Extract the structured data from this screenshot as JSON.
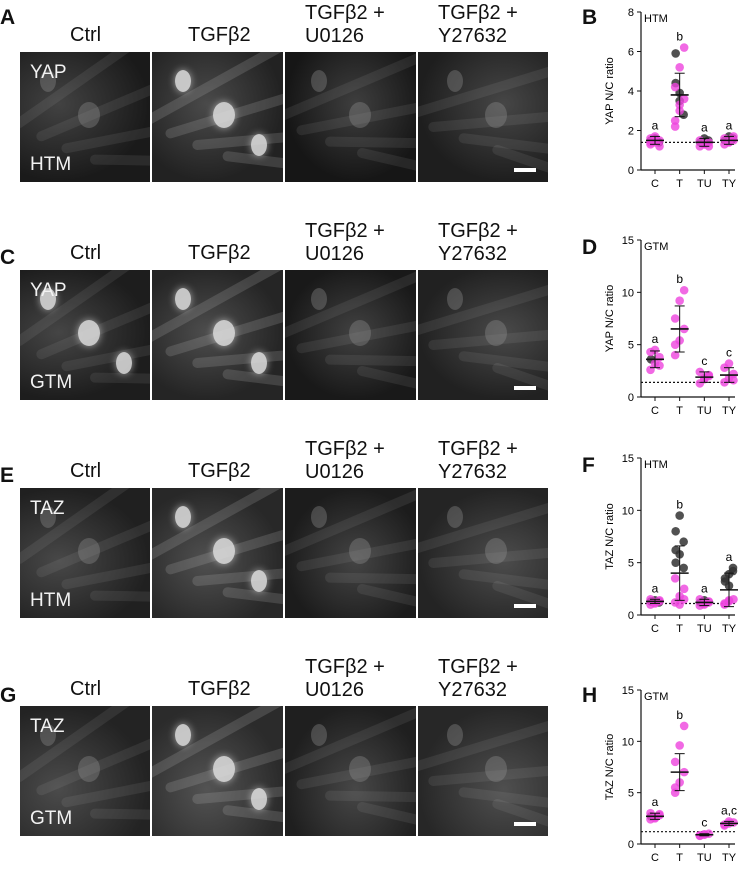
{
  "columns": [
    "Ctrl",
    "TGFβ2",
    "TGFβ2 +\nU0126",
    "TGFβ2 +\nY27632"
  ],
  "rows": [
    {
      "letter": "A",
      "stain": "YAP",
      "cell": "HTM",
      "plot_letter": "B"
    },
    {
      "letter": "C",
      "stain": "YAP",
      "cell": "GTM",
      "plot_letter": "D"
    },
    {
      "letter": "E",
      "stain": "TAZ",
      "cell": "HTM",
      "plot_letter": "F"
    },
    {
      "letter": "G",
      "stain": "TAZ",
      "cell": "GTM",
      "plot_letter": "H"
    }
  ],
  "colors": {
    "magenta": "#ee44dd",
    "dark": "#333333",
    "bg": "#ffffff"
  },
  "chart_data": [
    {
      "type": "scatter",
      "panel": "B",
      "title": "HTM",
      "ylabel": "YAP N/C ratio",
      "categories": [
        "C",
        "T",
        "TU",
        "TY"
      ],
      "ylim": [
        0,
        8
      ],
      "yticks": [
        0,
        2,
        4,
        6,
        8
      ],
      "baseline": 1.4,
      "means": [
        1.5,
        3.8,
        1.4,
        1.5
      ],
      "sd": [
        0.2,
        1.1,
        0.2,
        0.2
      ],
      "sig": [
        "a",
        "b",
        "a",
        "a"
      ],
      "points_magenta": [
        [
          1.3,
          1.4,
          1.5,
          1.6,
          1.5,
          1.2,
          1.4,
          1.7
        ],
        [
          2.5,
          3.0,
          3.6,
          4.2,
          5.2,
          6.2,
          2.2,
          3.3
        ],
        [
          1.2,
          1.3,
          1.4,
          1.5,
          1.3,
          1.2
        ],
        [
          1.3,
          1.4,
          1.5,
          1.6,
          1.4,
          1.7
        ]
      ],
      "points_dark": [
        [
          1.5,
          1.6,
          1.4
        ],
        [
          5.9,
          3.9,
          2.8,
          4.4,
          3.5
        ],
        [
          1.4,
          1.6,
          1.5
        ],
        [
          1.5,
          1.7,
          1.6
        ]
      ]
    },
    {
      "type": "scatter",
      "panel": "D",
      "title": "GTM",
      "ylabel": "YAP N/C ratio",
      "categories": [
        "C",
        "T",
        "TU",
        "TY"
      ],
      "ylim": [
        0,
        15
      ],
      "yticks": [
        0,
        5,
        10,
        15
      ],
      "baseline": 1.4,
      "means": [
        3.6,
        6.5,
        1.9,
        2.1
      ],
      "sd": [
        0.8,
        2.2,
        0.5,
        0.7
      ],
      "sig": [
        "a",
        "b",
        "c",
        "c"
      ],
      "points_magenta": [
        [
          2.6,
          3.2,
          3.8,
          4.3,
          4.5,
          3.0
        ],
        [
          4.0,
          5.4,
          6.5,
          7.5,
          9.2,
          10.2,
          5.0
        ],
        [
          1.3,
          1.7,
          2.0,
          2.4,
          1.8,
          2.1
        ],
        [
          1.4,
          1.8,
          2.2,
          2.8,
          3.2,
          1.6
        ]
      ],
      "points_dark": [
        [
          3.6
        ],
        [],
        [],
        []
      ]
    },
    {
      "type": "scatter",
      "panel": "F",
      "title": "HTM",
      "ylabel": "TAZ N/C ratio",
      "categories": [
        "C",
        "T",
        "TU",
        "TY"
      ],
      "ylim": [
        0,
        15
      ],
      "yticks": [
        0,
        5,
        10,
        15
      ],
      "baseline": 1.1,
      "means": [
        1.3,
        4.0,
        1.2,
        2.4
      ],
      "sd": [
        0.2,
        2.6,
        0.3,
        1.6
      ],
      "sig": [
        "a",
        "b",
        "a",
        "a"
      ],
      "points_magenta": [
        [
          1.0,
          1.2,
          1.4,
          1.5,
          1.1,
          1.3
        ],
        [
          1.2,
          1.8,
          2.5,
          3.5,
          1.0,
          1.5
        ],
        [
          0.9,
          1.1,
          1.3,
          1.5,
          1.0,
          1.2
        ],
        [
          1.0,
          1.3,
          1.5,
          1.1,
          1.4
        ]
      ],
      "points_dark": [
        [
          1.3,
          1.4,
          1.2
        ],
        [
          5.0,
          5.8,
          7.0,
          8.0,
          9.5,
          4.5,
          6.2
        ],
        [
          1.2,
          1.4
        ],
        [
          3.2,
          3.9,
          4.5,
          3.5,
          2.8,
          4.2
        ]
      ]
    },
    {
      "type": "scatter",
      "panel": "H",
      "title": "GTM",
      "ylabel": "TAZ N/C ratio",
      "categories": [
        "C",
        "T",
        "TU",
        "TY"
      ],
      "ylim": [
        0,
        15
      ],
      "yticks": [
        0,
        5,
        10,
        15
      ],
      "baseline": 1.2,
      "means": [
        2.7,
        7.0,
        0.9,
        2.0
      ],
      "sd": [
        0.3,
        1.8,
        0.1,
        0.2
      ],
      "sig": [
        "a",
        "b",
        "c",
        "a,c"
      ],
      "points_magenta": [
        [
          2.4,
          2.6,
          2.8,
          3.0,
          2.5,
          2.9
        ],
        [
          5.0,
          6.0,
          7.0,
          8.0,
          9.6,
          11.5,
          5.5
        ],
        [
          0.8,
          0.9,
          1.0,
          0.85,
          0.95
        ],
        [
          1.8,
          2.0,
          2.1,
          1.9,
          2.2
        ]
      ],
      "points_dark": [
        [
          2.7
        ],
        [],
        [],
        []
      ]
    }
  ]
}
